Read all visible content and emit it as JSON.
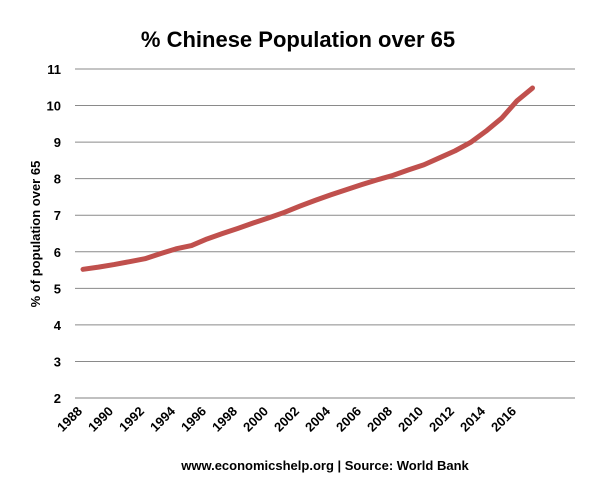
{
  "chart_data": {
    "type": "line",
    "title": "% Chinese Population over 65",
    "ylabel": "% of population over 65",
    "xlabel": "",
    "source": "www.economicshelp.org | Source: World Bank",
    "ylim": [
      2,
      11
    ],
    "xlim": [
      1988,
      2018
    ],
    "y_ticks": [
      "2",
      "3",
      "4",
      "5",
      "6",
      "7",
      "8",
      "9",
      "10",
      "11"
    ],
    "x_ticks": [
      "1988",
      "1990",
      "1992",
      "1994",
      "1996",
      "1998",
      "2000",
      "2002",
      "2004",
      "2006",
      "2008",
      "2010",
      "2012",
      "2014",
      "2016"
    ],
    "grid": true,
    "legend": "none",
    "series": [
      {
        "color": "#c0504d",
        "x": [
          1988,
          1989,
          1990,
          1991,
          1992,
          1993,
          1994,
          1995,
          1996,
          1997,
          1998,
          1999,
          2000,
          2001,
          2002,
          2003,
          2004,
          2005,
          2006,
          2007,
          2008,
          2009,
          2010,
          2011,
          2012,
          2013,
          2014,
          2015,
          2016,
          2017
        ],
        "values": [
          5.52,
          5.58,
          5.65,
          5.73,
          5.81,
          5.95,
          6.08,
          6.17,
          6.35,
          6.5,
          6.64,
          6.79,
          6.93,
          7.08,
          7.25,
          7.41,
          7.56,
          7.7,
          7.84,
          7.97,
          8.09,
          8.24,
          8.38,
          8.57,
          8.76,
          8.99,
          9.3,
          9.65,
          10.13,
          10.48
        ]
      }
    ]
  }
}
